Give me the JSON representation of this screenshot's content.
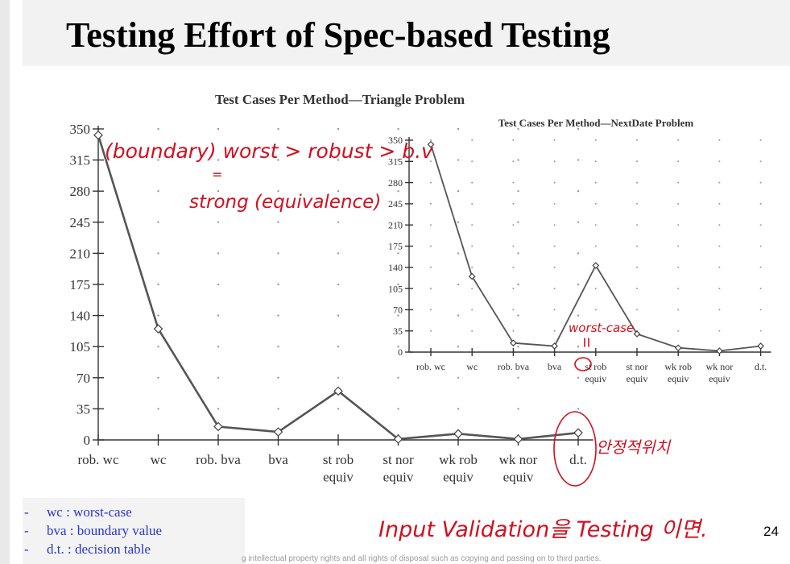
{
  "slide": {
    "title": "Testing Effort of Spec-based Testing",
    "page_number": "24",
    "footer": "g intellectual  property rights and all rights of disposal such as copying and passing on to third parties."
  },
  "legend": [
    {
      "dash": "-",
      "text": "wc : worst-case"
    },
    {
      "dash": "-",
      "text": "bva : boundary value"
    },
    {
      "dash": "-",
      "text": "d.t. : decision table"
    }
  ],
  "annotations": {
    "top_note": "(boundary) worst > robust > b.v",
    "equal_mark": "=",
    "second_note": "strong (equivalence)",
    "worst_case_note": "worst-case",
    "korean_note": "안정적위치",
    "bottom_note": "Input Validation을 Testing 이면."
  },
  "chart_data": [
    {
      "type": "line",
      "title": "Test Cases Per Method—Triangle Problem",
      "categories": [
        "rob. wc",
        "wc",
        "rob. bva",
        "bva",
        "st rob equiv",
        "st nor equiv",
        "wk rob equiv",
        "wk nor equiv",
        "d.t."
      ],
      "category_lines": [
        [
          "rob. wc"
        ],
        [
          "wc"
        ],
        [
          "rob. bva"
        ],
        [
          "bva"
        ],
        [
          "st rob",
          "equiv"
        ],
        [
          "st nor",
          "equiv"
        ],
        [
          "wk rob",
          "equiv"
        ],
        [
          "wk nor",
          "equiv"
        ],
        [
          "d.t."
        ]
      ],
      "values": [
        343,
        125,
        15,
        9,
        55,
        1,
        7,
        1,
        8
      ],
      "y_ticks": [
        0,
        35,
        70,
        105,
        140,
        175,
        210,
        245,
        280,
        315,
        350
      ],
      "ylim": [
        0,
        350
      ],
      "grid": "dotted",
      "marker": "diamond",
      "line_color": "#555555"
    },
    {
      "type": "line",
      "title": "Test Cases Per Method—NextDate Problem",
      "categories": [
        "rob. wc",
        "wc",
        "rob. bva",
        "bva",
        "st rob equiv",
        "st nor equiv",
        "wk rob equiv",
        "wk nor equiv",
        "d.t."
      ],
      "category_lines": [
        [
          "rob. wc"
        ],
        [
          "wc"
        ],
        [
          "rob. bva"
        ],
        [
          "bva"
        ],
        [
          "st rob",
          "equiv"
        ],
        [
          "st nor",
          "equiv"
        ],
        [
          "wk rob",
          "equiv"
        ],
        [
          "wk nor",
          "equiv"
        ],
        [
          "d.t."
        ]
      ],
      "values": [
        343,
        125,
        15,
        10,
        143,
        30,
        7,
        2,
        10
      ],
      "y_ticks": [
        0,
        35,
        70,
        105,
        140,
        175,
        210,
        245,
        280,
        315,
        350
      ],
      "ylim": [
        0,
        350
      ],
      "grid": "dotted",
      "marker": "diamond",
      "line_color": "#555555"
    }
  ]
}
